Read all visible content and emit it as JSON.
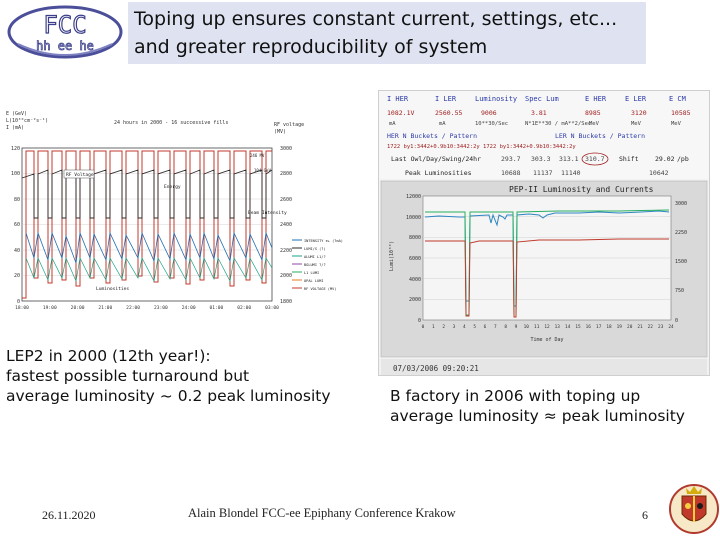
{
  "logo": {
    "top": "FCC",
    "bottom": "hh ee he"
  },
  "title": {
    "line1": "Toping up ensures constant current, settings, etc...",
    "line2": "and greater reproducibility of system"
  },
  "lep_plot": {
    "y_left_label_1": "E (GeV)",
    "y_left_label_2": "L(10³⁰cm⁻²s⁻¹)",
    "y_left_label_3": "I (mA)",
    "subtitle": "24 hours in 2000 - 16 successive fills",
    "y_right_label_1": "RF voltage",
    "y_right_label_2": "(MV)",
    "annot_rf": "RF Voltage",
    "annot_energy": "Energy",
    "annot_beam": "Beam Intensity",
    "annot_lum": "Luminosities",
    "annot_246": "246 MV",
    "annot_104": "104 GeV",
    "left_ticks": [
      "120",
      "100",
      "80",
      "60",
      "40",
      "20",
      "0"
    ],
    "right_ticks": [
      "3000",
      "2800",
      "2600",
      "2400",
      "2200",
      "2000",
      "1800"
    ],
    "x_ticks": [
      "18:00",
      "19:00",
      "20:00",
      "21:00",
      "22:00",
      "23:00",
      "24:00",
      "01:00",
      "02:00",
      "03:00"
    ],
    "legend": [
      "INTENSITY e+ (?mA)",
      "LUMI/S (?)",
      "ALUMI L1/?",
      "BGLUMI ?/?",
      "L1 LUMI",
      "OPAL LUMI",
      "RF VOLTAGE (MV)"
    ]
  },
  "bfactory": {
    "header": [
      "I HER",
      "I LER",
      "Luminosity",
      "Spec Lum",
      "E HER",
      "E LER",
      "E CM"
    ],
    "row1": [
      "1082.1V",
      "2560.55",
      "9006",
      "3.81",
      "8985",
      "3120",
      "10585"
    ],
    "row1b": [
      "mA",
      "mA",
      "10**30/Sec",
      "N*1E**30 /\nmA**2/Sec",
      "MeV",
      "MeV",
      "MeV"
    ],
    "buckets_her": "HER N Buckets / Pattern",
    "buckets_ler": "LER N Buckets / Pattern",
    "pattern": "1722  by1:3442+0.9b10:3442:2y  1722  by1:3442+0.9b10:3442:2y",
    "last_owl": "Last Owl/Day/Swing/24hr",
    "last_vals": [
      "293.7",
      "303.3",
      "313.1",
      "310.7"
    ],
    "shift": "Shift",
    "shift_val": "29.02",
    "shift_unit": "/pb",
    "peak": "Peak Luminosities",
    "peak_vals": [
      "10688",
      "11137",
      "11140"
    ],
    "peak_extra": "10642",
    "plot_title": "PEP-II Luminosity and Currents",
    "y_left_label": "Lumi(10³⁰)",
    "x_label": "Time of Day",
    "left_ticks": [
      "12000",
      "10000",
      "8000",
      "6000",
      "4000",
      "2000",
      "0"
    ],
    "right_ticks": [
      "3000",
      "2250",
      "1500",
      "750",
      "0"
    ],
    "x_ticks": [
      "0",
      "1",
      "2",
      "3",
      "4",
      "5",
      "6",
      "7",
      "8",
      "9",
      "10",
      "11",
      "12",
      "13",
      "14",
      "15",
      "16",
      "17",
      "18",
      "19",
      "20",
      "21",
      "22",
      "23",
      "24"
    ],
    "timestamp": "07/03/2006 09:20:21"
  },
  "captions": {
    "lep": [
      "LEP2 in 2000 (12th year!):",
      "fastest possible  turnaround but",
      "average luminosity ~ 0.2 peak luminosity"
    ],
    "bf": [
      "B factory in 2006 with toping up",
      "average luminosity ≈ peak luminosity"
    ]
  },
  "footer": {
    "date": "26.11.2020",
    "center": "Alain Blondel  FCC-ee  Epiphany Conference Krakow",
    "page": "6"
  }
}
